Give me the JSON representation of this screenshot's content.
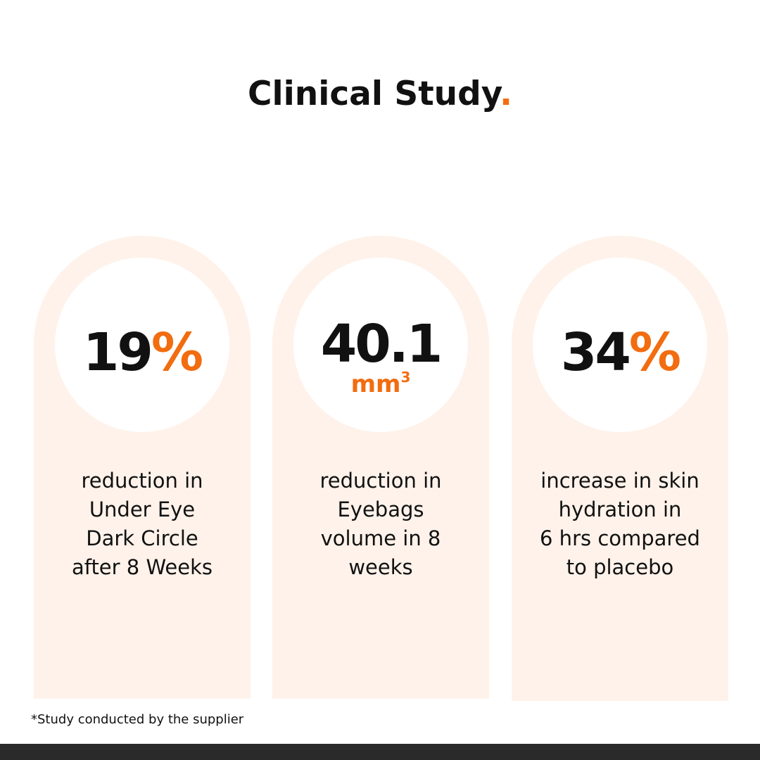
{
  "header": {
    "title": "Clinical Study",
    "title_dot": "."
  },
  "colors": {
    "accent": "#f26c10",
    "card_background": "#fef2ea",
    "text": "#111111",
    "bottom_bar": "#2a2a2a"
  },
  "stats": [
    {
      "value": "19",
      "unit": "%",
      "description": "reduction in\nUnder Eye\nDark Circle\nafter 8 Weeks"
    },
    {
      "value": "40.1",
      "subunit_base": "mm",
      "subunit_exp": "3",
      "description": "reduction in\nEyebags\nvolume in 8\nweeks"
    },
    {
      "value": "34",
      "unit": "%",
      "description": "increase in skin\nhydration in\n6 hrs compared\nto placebo"
    }
  ],
  "footnote": "*Study conducted by the supplier"
}
